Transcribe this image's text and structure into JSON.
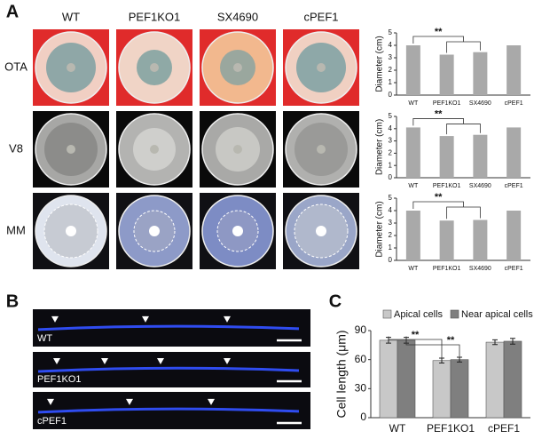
{
  "panel_labels": [
    "A",
    "B",
    "C"
  ],
  "panel_a": {
    "columns": [
      "WT",
      "PEF1KO1",
      "SX4690",
      "cPEF1"
    ],
    "rows": [
      "OTA",
      "V8",
      "MM"
    ]
  },
  "panel_b": {
    "labels": [
      "WT",
      "PEF1KO1",
      "cPEF1"
    ]
  },
  "chart_data": [
    {
      "type": "bar",
      "ylabel": "Diameter (cm)",
      "categories": [
        "WT",
        "PEF1KO1",
        "SX4690",
        "cPEF1"
      ],
      "values": [
        4.0,
        3.25,
        3.45,
        4.0
      ],
      "color": "#a9a9a9",
      "ylim": [
        0,
        5
      ],
      "yticks": [
        0,
        1,
        2,
        3,
        4,
        5
      ],
      "annotation": "**"
    },
    {
      "type": "bar",
      "ylabel": "Diameter (cm)",
      "categories": [
        "WT",
        "PEF1KO1",
        "SX4690",
        "cPEF1"
      ],
      "values": [
        4.1,
        3.4,
        3.5,
        4.1
      ],
      "color": "#a9a9a9",
      "ylim": [
        0,
        5
      ],
      "yticks": [
        0,
        1,
        2,
        3,
        4,
        5
      ],
      "annotation": "**"
    },
    {
      "type": "bar",
      "ylabel": "Diameter (cm)",
      "categories": [
        "WT",
        "PEF1KO1",
        "SX4690",
        "cPEF1"
      ],
      "values": [
        4.0,
        3.2,
        3.25,
        4.0
      ],
      "color": "#a9a9a9",
      "ylim": [
        0,
        5
      ],
      "yticks": [
        0,
        1,
        2,
        3,
        4,
        5
      ],
      "annotation": "**"
    },
    {
      "type": "grouped_bar",
      "ylabel": "Cell length (μm)",
      "categories": [
        "WT",
        "PEF1KO1",
        "cPEF1"
      ],
      "series": [
        {
          "name": "Apical cells",
          "color": "#c8c8c8",
          "values": [
            80,
            59,
            78
          ],
          "errors": [
            3,
            2.5,
            2.5
          ]
        },
        {
          "name": "Near apical cells",
          "color": "#7f7f7f",
          "values": [
            80,
            60,
            79
          ],
          "errors": [
            3,
            2.5,
            3
          ]
        }
      ],
      "ylim": [
        0,
        90
      ],
      "yticks": [
        0,
        30,
        60,
        90
      ],
      "annotations": [
        "**",
        "**"
      ]
    }
  ]
}
